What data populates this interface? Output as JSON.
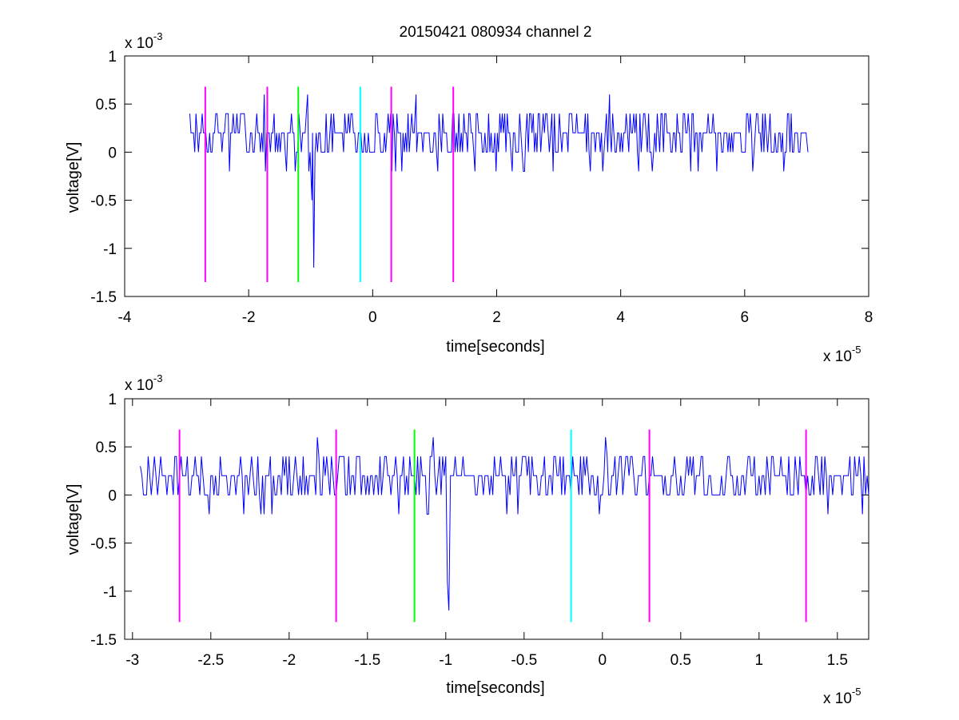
{
  "figure": {
    "title": "20150421 080934 channel 2"
  },
  "chart_data": [
    {
      "type": "line",
      "xlabel": "time[seconds]",
      "ylabel": "voltage[V]",
      "x_exponent_label": "x 10",
      "x_exponent": "-5",
      "y_exponent_label": "x 10",
      "y_exponent": "-3",
      "xlim": [
        -4,
        8
      ],
      "ylim": [
        -1.5,
        1
      ],
      "xticks": [
        -4,
        -2,
        0,
        2,
        4,
        6,
        8
      ],
      "xtick_labels": [
        "-4",
        "-2",
        "0",
        "2",
        "4",
        "6",
        "8"
      ],
      "yticks": [
        -1.5,
        -1,
        -0.5,
        0,
        0.5,
        1
      ],
      "ytick_labels": [
        "-1.5",
        "-1",
        "-0.5",
        "0",
        "0.5",
        "1"
      ],
      "grid": false,
      "series": [
        {
          "color": "#0000ff",
          "x_range": [
            -2.95,
            7.02
          ],
          "values_x_step": 0.02,
          "dominant_levels": [
            0,
            0.2,
            0.4
          ],
          "notable_points": [
            {
              "x": -2.95,
              "y": 0.4
            },
            {
              "x": -1.75,
              "y": 0.6
            },
            {
              "x": -1.05,
              "y": 0.6
            },
            {
              "x": -0.98,
              "y": -0.5
            },
            {
              "x": -0.95,
              "y": -1.2
            },
            {
              "x": 0.7,
              "y": 0.6
            },
            {
              "x": 3.82,
              "y": 0.6
            },
            {
              "x": 7.02,
              "y": 0
            }
          ]
        }
      ],
      "markers": [
        {
          "x": -2.7,
          "color": "#ff00ff"
        },
        {
          "x": -1.7,
          "color": "#ff00ff"
        },
        {
          "x": -1.2,
          "color": "#00ff00"
        },
        {
          "x": -0.2,
          "color": "#00ffff"
        },
        {
          "x": 0.3,
          "color": "#ff00ff"
        },
        {
          "x": 1.3,
          "color": "#ff00ff"
        }
      ],
      "marker_span": [
        -1.35,
        0.68
      ]
    },
    {
      "type": "line",
      "xlabel": "time[seconds]",
      "ylabel": "voltage[V]",
      "x_exponent_label": "x 10",
      "x_exponent": "-5",
      "y_exponent_label": "x 10",
      "y_exponent": "-3",
      "xlim": [
        -3.05,
        1.7
      ],
      "ylim": [
        -1.5,
        1
      ],
      "xticks": [
        -3,
        -2.5,
        -2,
        -1.5,
        -1,
        -0.5,
        0,
        0.5,
        1,
        1.5
      ],
      "xtick_labels": [
        "-3",
        "-2.5",
        "-2",
        "-1.5",
        "-1",
        "-0.5",
        "0",
        "0.5",
        "1",
        "1.5"
      ],
      "yticks": [
        -1.5,
        -1,
        -0.5,
        0,
        0.5,
        1
      ],
      "ytick_labels": [
        "-1.5",
        "-1",
        "-0.5",
        "0",
        "0.5",
        "1"
      ],
      "grid": false,
      "series": [
        {
          "color": "#0000ff",
          "x_range": [
            -2.95,
            1.7
          ],
          "values_x_step": 0.01,
          "dominant_levels": [
            0,
            0.2,
            0.4
          ],
          "notable_points": [
            {
              "x": -2.95,
              "y": 0.3
            },
            {
              "x": -1.82,
              "y": 0.6
            },
            {
              "x": -1.08,
              "y": 0.6
            },
            {
              "x": -0.99,
              "y": -0.9
            },
            {
              "x": -0.98,
              "y": -1.2
            },
            {
              "x": 0.02,
              "y": 0.6
            },
            {
              "x": 1.7,
              "y": 0
            }
          ]
        }
      ],
      "markers": [
        {
          "x": -2.7,
          "color": "#ff00ff"
        },
        {
          "x": -1.7,
          "color": "#ff00ff"
        },
        {
          "x": -1.2,
          "color": "#00ff00"
        },
        {
          "x": -0.2,
          "color": "#00ffff"
        },
        {
          "x": 0.3,
          "color": "#ff00ff"
        },
        {
          "x": 1.3,
          "color": "#ff00ff"
        }
      ],
      "marker_span": [
        -1.32,
        0.68
      ]
    }
  ]
}
